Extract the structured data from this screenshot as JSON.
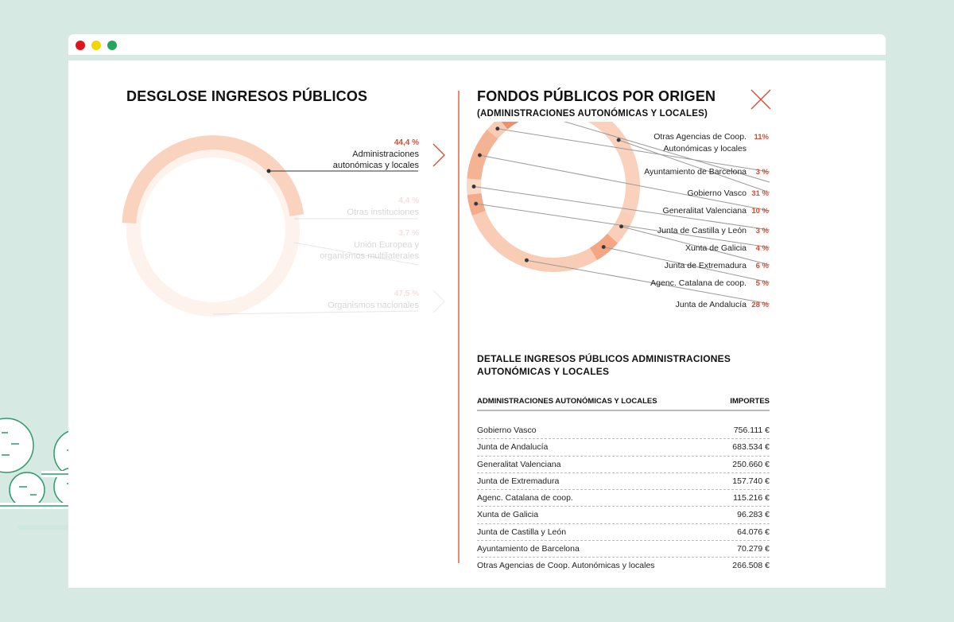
{
  "left": {
    "title": "DESGLOSE INGRESOS PÚBLICOS",
    "legend": [
      {
        "pct": "44,4 %",
        "label_lines": [
          "Administraciones",
          "autonómicas y locales"
        ],
        "value": 44.4
      },
      {
        "pct": "4,4 %",
        "label_lines": [
          "Otras instituciones"
        ],
        "value": 4.4
      },
      {
        "pct": "3,7 %",
        "label_lines": [
          "Unión Europea y",
          "organismos multilaterales"
        ],
        "value": 3.7
      },
      {
        "pct": "47,5 %",
        "label_lines": [
          "Organismos nacionales"
        ],
        "value": 47.5
      }
    ]
  },
  "right": {
    "title": "FONDOS PÚBLICOS POR ORIGEN",
    "subtitle": "(ADMINISTRACIONES AUTONÓMICAS Y LOCALES)",
    "legend": [
      {
        "label_lines": [
          "Otras Agencias de Coop.",
          "Autonómicas y locales"
        ],
        "pct": "11%"
      },
      {
        "label_lines": [
          "Ayuntamiento de Barcelona"
        ],
        "pct": "3 %"
      },
      {
        "label_lines": [
          "Gobierno Vasco"
        ],
        "pct": "31 %"
      },
      {
        "label_lines": [
          "Generalitat Valenciana"
        ],
        "pct": "10 %"
      },
      {
        "label_lines": [
          "Junta de Castilla y León"
        ],
        "pct": "3 %"
      },
      {
        "label_lines": [
          "Xunta de Galicia"
        ],
        "pct": "4 %"
      },
      {
        "label_lines": [
          "Junta de Extremadura"
        ],
        "pct": "6 %"
      },
      {
        "label_lines": [
          "Agenc. Catalana de coop."
        ],
        "pct": "5 %"
      },
      {
        "label_lines": [
          "Junta de Andalucía"
        ],
        "pct": "28 %"
      }
    ],
    "donut_values": [
      11,
      3,
      31,
      10,
      3,
      4,
      6,
      5,
      28
    ],
    "donut_colors": [
      "#ec906f",
      "#f7cbb4",
      "#f9d1bc",
      "#f4b392",
      "#fad8c6",
      "#f2ac8c",
      "#f9cfb9",
      "#f2a683",
      "#f9ccb5"
    ]
  },
  "detail": {
    "title": "DETALLE INGRESOS PÚBLICOS ADMINISTRACIONES AUTONÓMICAS Y LOCALES",
    "col_name": "ADMINISTRACIONES AUTONÓMICAS Y LOCALES",
    "col_amount": "IMPORTES",
    "rows": [
      {
        "name": "Gobierno Vasco",
        "amount": "756.111 €"
      },
      {
        "name": "Junta de Andalucía",
        "amount": "683.534 €"
      },
      {
        "name": "Generalitat Valenciana",
        "amount": "250.660 €"
      },
      {
        "name": "Junta de Extremadura",
        "amount": "157.740 €"
      },
      {
        "name": "Agenc. Catalana de coop.",
        "amount": "115.216 €"
      },
      {
        "name": "Xunta de Galicia",
        "amount": "96.283 €"
      },
      {
        "name": "Junta de Castilla y León",
        "amount": "64.076 €"
      },
      {
        "name": "Ayuntamiento de Barcelona",
        "amount": "70.279 €"
      },
      {
        "name": "Otras Agencias de Coop. Autonómicas y locales",
        "amount": "266.508 €"
      }
    ]
  },
  "colors": {
    "accent": "#d94a31",
    "ring_main": "#f9d3be",
    "ring_faded": "#fdf2ec",
    "tree_green": "#2f9a6a",
    "tree_shadow": "#cfe8df"
  }
}
